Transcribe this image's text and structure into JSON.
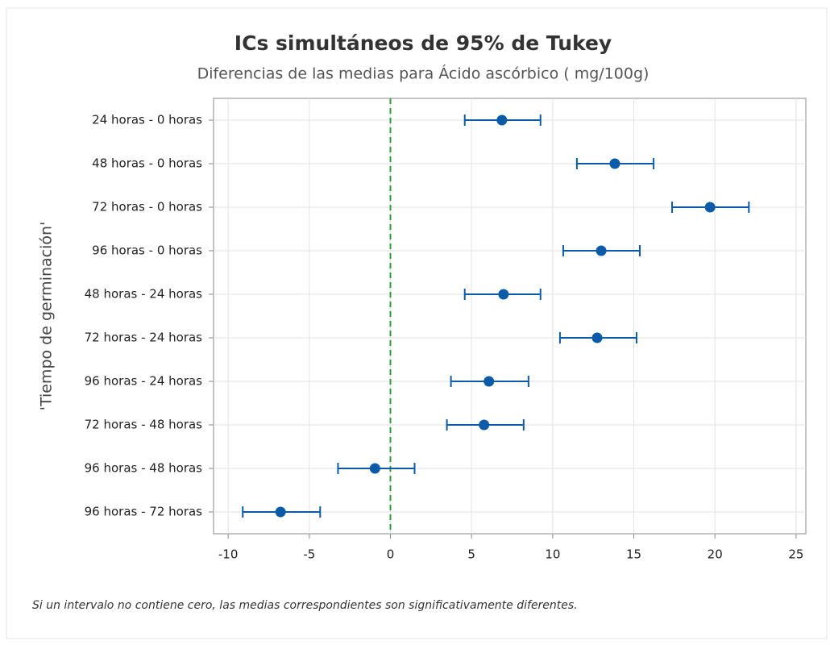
{
  "chart_data": {
    "type": "interval",
    "title": "ICs simultáneos de 95% de Tukey",
    "subtitle": "Diferencias de las medias para Ácido ascórbico ( mg/100g)",
    "ylabel": "'Tiempo de germinación'",
    "note": "Si un intervalo no contiene cero, las medias correspondientes son significativamente diferentes.",
    "categories": [
      "24 horas  - 0 horas",
      "48 horas  - 0 horas",
      "72 horas  - 0 horas",
      "96 horas  - 0 horas",
      "48 horas  - 24 horas",
      "72 horas  - 24 horas",
      "96 horas  - 24 horas",
      "72 horas  - 48 horas",
      "96 horas  - 48 horas",
      "96 horas  - 72 horas"
    ],
    "values": [
      6.87,
      13.83,
      19.7,
      12.99,
      6.97,
      12.74,
      6.07,
      5.77,
      -0.95,
      -6.77
    ],
    "lower": [
      4.58,
      11.49,
      17.36,
      10.65,
      4.58,
      10.45,
      3.73,
      3.48,
      -3.23,
      -9.1
    ],
    "upper": [
      9.25,
      16.22,
      22.09,
      15.37,
      9.25,
      15.17,
      8.51,
      8.21,
      1.49,
      -4.33
    ],
    "color": "#0b5ba8",
    "reference_line": 0,
    "reference_color": "#2e9a3a",
    "xlim": [
      -10.9,
      25.6
    ],
    "xticks": [
      -10,
      -5,
      0,
      5,
      10,
      15,
      20,
      25
    ],
    "grid": true
  }
}
